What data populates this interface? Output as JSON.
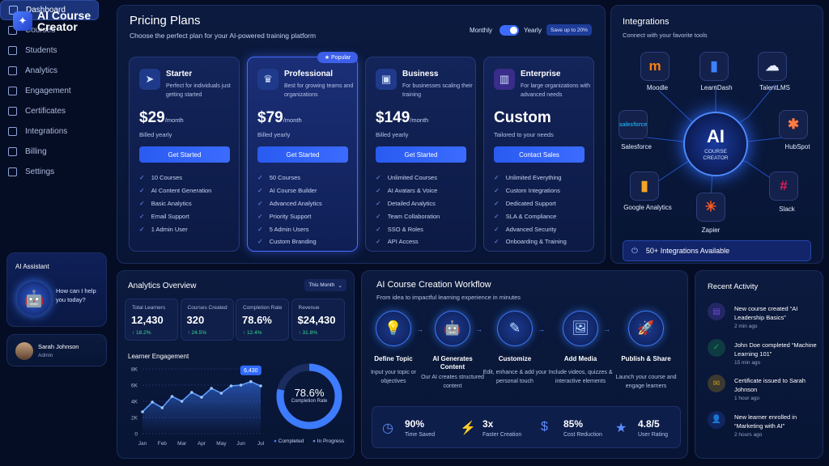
{
  "app": {
    "title": "AI Course Creator"
  },
  "sidebar": {
    "items": [
      {
        "label": "Dashboard",
        "icon": "dashboard-icon",
        "active": true
      },
      {
        "label": "Courses",
        "icon": "courses-icon"
      },
      {
        "label": "Students",
        "icon": "students-icon"
      },
      {
        "label": "Analytics",
        "icon": "analytics-icon"
      },
      {
        "label": "Engagement",
        "icon": "engagement-icon"
      },
      {
        "label": "Certificates",
        "icon": "certificates-icon"
      },
      {
        "label": "Integrations",
        "icon": "integrations-icon"
      },
      {
        "label": "Billing",
        "icon": "billing-icon"
      },
      {
        "label": "Settings",
        "icon": "settings-icon"
      }
    ],
    "assistant": {
      "title": "AI Assistant",
      "message": "How can I help you today?"
    },
    "user": {
      "name": "Sarah Johnson",
      "role": "Admin"
    }
  },
  "pricing": {
    "title": "Pricing Plans",
    "subtitle": "Choose the perfect plan for your AI-powered training platform",
    "toggle": {
      "monthly": "Monthly",
      "yearly": "Yearly",
      "save": "Save up to 20%",
      "selected": "Yearly"
    },
    "badge": "★ Popular",
    "plans": [
      {
        "name": "Starter",
        "desc": "Perfect for individuals just getting started",
        "price": "$29",
        "period": "/month",
        "billing": "Billed yearly",
        "cta": "Get Started",
        "features": [
          "10 Courses",
          "AI Content Generation",
          "Basic Analytics",
          "Email Support",
          "1 Admin User"
        ]
      },
      {
        "name": "Professional",
        "desc": "Best for growing teams and organizations",
        "price": "$79",
        "period": "/month",
        "billing": "Billed yearly",
        "cta": "Get Started",
        "features": [
          "50 Courses",
          "AI Course Builder",
          "Advanced Analytics",
          "Priority Support",
          "5 Admin Users",
          "Custom Branding"
        ]
      },
      {
        "name": "Business",
        "desc": "For businesses scaling their training",
        "price": "$149",
        "period": "/month",
        "billing": "Billed yearly",
        "cta": "Get Started",
        "features": [
          "Unlimited Courses",
          "AI Avatars & Voice",
          "Detailed Analytics",
          "Team Collaboration",
          "SSO & Roles",
          "API Access"
        ]
      },
      {
        "name": "Enterprise",
        "desc": "For large organizations with advanced needs",
        "price": "Custom",
        "period": "",
        "billing": "Tailored to your needs",
        "cta": "Contact Sales",
        "features": [
          "Unlimited Everything",
          "Custom Integrations",
          "Dedicated Support",
          "SLA & Compliance",
          "Advanced Security",
          "Onboarding & Training"
        ]
      }
    ]
  },
  "integrations": {
    "title": "Integrations",
    "subtitle": "Connect with your favorite tools",
    "hub": {
      "big": "AI",
      "small": "COURSE CREATOR"
    },
    "apps": [
      {
        "name": "Moodle",
        "glyph": "m",
        "color": "#f98012"
      },
      {
        "name": "LearnDash",
        "glyph": "▮",
        "color": "#3b82ff"
      },
      {
        "name": "TalentLMS",
        "glyph": "☁",
        "color": "#e6edff"
      },
      {
        "name": "Salesforce",
        "glyph": "salesforce",
        "color": "#1ea0e0"
      },
      {
        "name": "HubSpot",
        "glyph": "✱",
        "color": "#ff7a45"
      },
      {
        "name": "Google Analytics",
        "glyph": "▮",
        "color": "#f5a623"
      },
      {
        "name": "Zapier",
        "glyph": "✳",
        "color": "#ff5a1f"
      },
      {
        "name": "Slack",
        "glyph": "#",
        "color": "#e01e5a"
      }
    ],
    "footer": "50+ Integrations Available"
  },
  "analytics": {
    "title": "Analytics Overview",
    "filter": "This Month",
    "stats": [
      {
        "label": "Total Learners",
        "value": "12,430",
        "delta": "↑ 18.2%"
      },
      {
        "label": "Courses Created",
        "value": "320",
        "delta": "↑ 24.5%"
      },
      {
        "label": "Completion Rate",
        "value": "78.6%",
        "delta": "↑ 12.4%"
      },
      {
        "label": "Revenue",
        "value": "$24,430",
        "delta": "↑ 31.8%"
      }
    ],
    "engagement_title": "Learner Engagement",
    "donut": {
      "value": "78.6%",
      "label": "Completion Rate",
      "fraction": 0.786,
      "legend": [
        "Completed",
        "In Progress"
      ]
    }
  },
  "chart_data": {
    "type": "line",
    "title": "Learner Engagement",
    "categories": [
      "Jan",
      "Feb",
      "Mar",
      "Apr",
      "May",
      "Jun",
      "Jul"
    ],
    "x": [
      1,
      1.5,
      2,
      2.5,
      3,
      3.5,
      4,
      4.5,
      5,
      5.5,
      6,
      6.5,
      7
    ],
    "values": [
      2700,
      3900,
      3200,
      4600,
      4000,
      5100,
      4500,
      5600,
      5000,
      5900,
      6000,
      6430,
      5900
    ],
    "yticks": [
      "0",
      "2K",
      "4K",
      "6K",
      "8K"
    ],
    "ylim": [
      0,
      8000
    ],
    "callout": "6,430",
    "grid": true
  },
  "workflow": {
    "title": "AI Course Creation Workflow",
    "subtitle": "From idea to impactful learning experience in minutes",
    "steps": [
      {
        "title": "Define Topic",
        "desc": "Input your topic or objectives",
        "icon": "lightbulb-icon",
        "glyph": "💡"
      },
      {
        "title": "AI Generates Content",
        "desc": "Our AI creates structured content",
        "icon": "robot-icon",
        "glyph": "🤖"
      },
      {
        "title": "Customize",
        "desc": "Edit, enhance & add your personal touch",
        "icon": "pencil-icon",
        "glyph": "✎"
      },
      {
        "title": "Add Media",
        "desc": "Include videos, quizzes & interactive elements",
        "icon": "image-icon",
        "glyph": "🖼"
      },
      {
        "title": "Publish & Share",
        "desc": "Launch your course and engage learners",
        "icon": "rocket-icon",
        "glyph": "🚀"
      }
    ],
    "metrics": [
      {
        "value": "90%",
        "label": "Time Saved",
        "glyph": "◷"
      },
      {
        "value": "3x",
        "label": "Faster Creation",
        "glyph": "⚡"
      },
      {
        "value": "85%",
        "label": "Cost Reduction",
        "glyph": "$"
      },
      {
        "value": "4.8/5",
        "label": "User Rating",
        "glyph": "★"
      }
    ]
  },
  "activity": {
    "title": "Recent Activity",
    "items": [
      {
        "text": "New course created “AI Leadership Basics”",
        "time": "2 min ago",
        "color": "#6b4dd6",
        "glyph": "▤"
      },
      {
        "text": "John Doe completed “Machine Learning 101”",
        "time": "15 min ago",
        "color": "#1f9c5a",
        "glyph": "✓"
      },
      {
        "text": "Certificate issued to Sarah Johnson",
        "time": "1 hour ago",
        "color": "#c89a1a",
        "glyph": "✉"
      },
      {
        "text": "New learner enrolled in “Marketing with AI”",
        "time": "2 hours ago",
        "color": "#2b4fd0",
        "glyph": "👤"
      }
    ]
  }
}
